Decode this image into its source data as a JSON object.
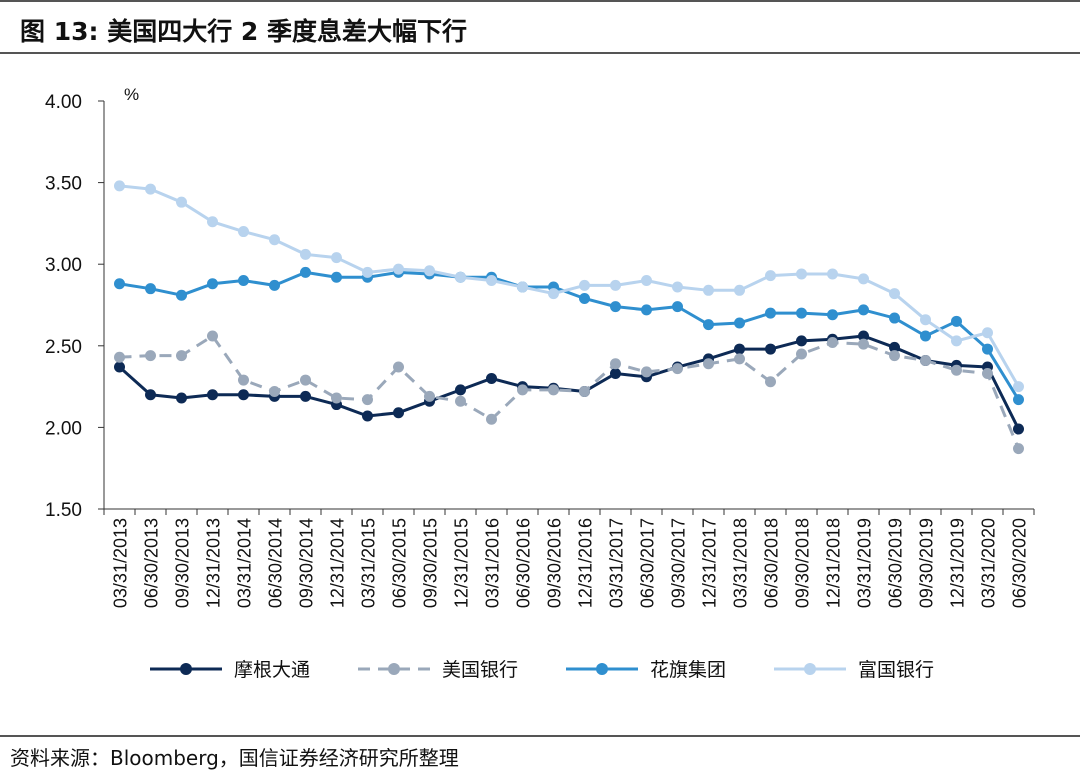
{
  "header": {
    "title": "图 13:  美国四大行 2 季度息差大幅下行"
  },
  "footer": {
    "source": "资料来源：Bloomberg，国信证券经济研究所整理"
  },
  "chart_data": {
    "type": "line",
    "title": "",
    "xlabel": "",
    "ylabel": "%",
    "ylim": [
      1.5,
      4.0
    ],
    "yticks": [
      "4.00",
      "3.50",
      "3.00",
      "2.50",
      "2.00",
      "1.50"
    ],
    "grid": false,
    "legend_position": "bottom",
    "categories": [
      "03/31/2013",
      "06/30/2013",
      "09/30/2013",
      "12/31/2013",
      "03/31/2014",
      "06/30/2014",
      "09/30/2014",
      "12/31/2014",
      "03/31/2015",
      "06/30/2015",
      "09/30/2015",
      "12/31/2015",
      "03/31/2016",
      "06/30/2016",
      "09/30/2016",
      "12/31/2016",
      "03/31/2017",
      "06/30/2017",
      "09/30/2017",
      "12/31/2017",
      "03/31/2018",
      "06/30/2018",
      "09/30/2018",
      "12/31/2018",
      "03/31/2019",
      "06/30/2019",
      "09/30/2019",
      "12/31/2019",
      "03/31/2020",
      "06/30/2020"
    ],
    "series": [
      {
        "name": "摩根大通",
        "color": "#0d2a55",
        "dashed": false,
        "values": [
          2.37,
          2.2,
          2.18,
          2.2,
          2.2,
          2.19,
          2.19,
          2.14,
          2.07,
          2.09,
          2.16,
          2.23,
          2.3,
          2.25,
          2.24,
          2.22,
          2.33,
          2.31,
          2.37,
          2.42,
          2.48,
          2.48,
          2.53,
          2.54,
          2.56,
          2.49,
          2.41,
          2.38,
          2.37,
          1.99
        ]
      },
      {
        "name": "美国银行",
        "color": "#9aa8ba",
        "dashed": true,
        "values": [
          2.43,
          2.44,
          2.44,
          2.56,
          2.29,
          2.22,
          2.29,
          2.18,
          2.17,
          2.37,
          2.19,
          2.16,
          2.05,
          2.23,
          2.23,
          2.22,
          2.39,
          2.34,
          2.36,
          2.39,
          2.42,
          2.28,
          2.45,
          2.52,
          2.51,
          2.44,
          2.41,
          2.35,
          2.33,
          1.87
        ]
      },
      {
        "name": "花旗集团",
        "color": "#2f8fcf",
        "dashed": false,
        "values": [
          2.88,
          2.85,
          2.81,
          2.88,
          2.9,
          2.87,
          2.95,
          2.92,
          2.92,
          2.95,
          2.94,
          2.92,
          2.92,
          2.86,
          2.86,
          2.79,
          2.74,
          2.72,
          2.74,
          2.63,
          2.64,
          2.7,
          2.7,
          2.69,
          2.72,
          2.67,
          2.56,
          2.65,
          2.48,
          2.17
        ]
      },
      {
        "name": "富国银行",
        "color": "#b8d3ee",
        "dashed": false,
        "values": [
          3.48,
          3.46,
          3.38,
          3.26,
          3.2,
          3.15,
          3.06,
          3.04,
          2.95,
          2.97,
          2.96,
          2.92,
          2.9,
          2.86,
          2.82,
          2.87,
          2.87,
          2.9,
          2.86,
          2.84,
          2.84,
          2.93,
          2.94,
          2.94,
          2.91,
          2.82,
          2.66,
          2.53,
          2.58,
          2.25
        ]
      }
    ]
  }
}
